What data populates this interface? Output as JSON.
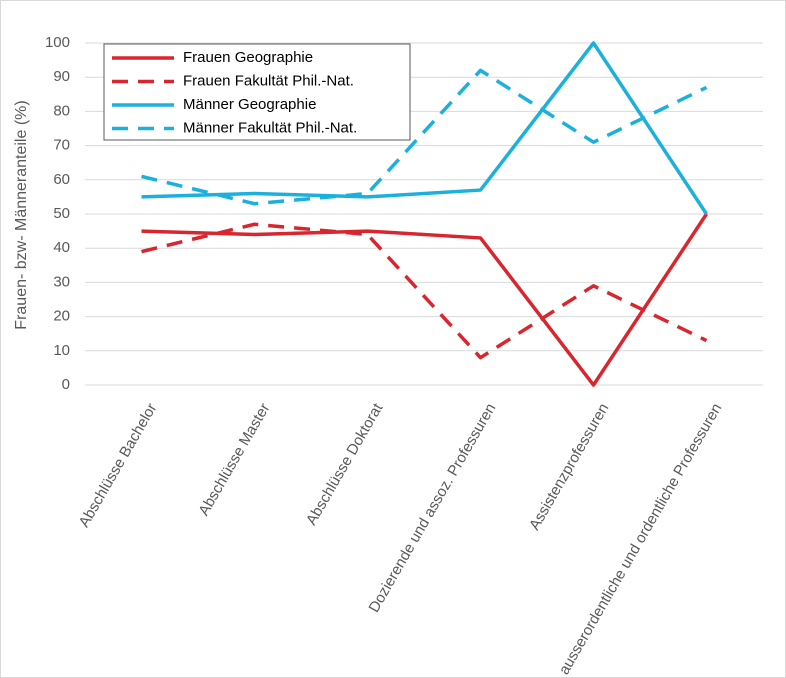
{
  "chart_data": {
    "type": "line",
    "y_label": "Frauen- bzw- Männeranteile (%)",
    "categories": [
      "Abschlüsse Bachelor",
      "Abschlüsse Master",
      "Abschlüsse Doktorat",
      "Dozierende und assoz. Professuren",
      "Assistenzprofessuren",
      "ausserordentliche und ordentliche Professuren"
    ],
    "series": [
      {
        "name": "Frauen Geographie",
        "color": "#d9262e",
        "style": "solid",
        "values": [
          45,
          44,
          45,
          43,
          0,
          50
        ]
      },
      {
        "name": "Frauen Fakultät Phil.-Nat.",
        "color": "#d9262e",
        "style": "dashed",
        "values": [
          39,
          47,
          44,
          8,
          29,
          13
        ]
      },
      {
        "name": "Männer Geographie",
        "color": "#1cb0dd",
        "style": "solid",
        "values": [
          55,
          56,
          55,
          57,
          100,
          50
        ]
      },
      {
        "name": "Männer Fakultät Phil.-Nat.",
        "color": "#1cb0dd",
        "style": "dashed",
        "values": [
          61,
          53,
          56,
          92,
          71,
          87
        ]
      }
    ],
    "ylim": [
      0,
      100
    ],
    "yticks": [
      0,
      10,
      20,
      30,
      40,
      50,
      60,
      70,
      80,
      90,
      100
    ],
    "grid": true,
    "legend": "upper-left"
  }
}
